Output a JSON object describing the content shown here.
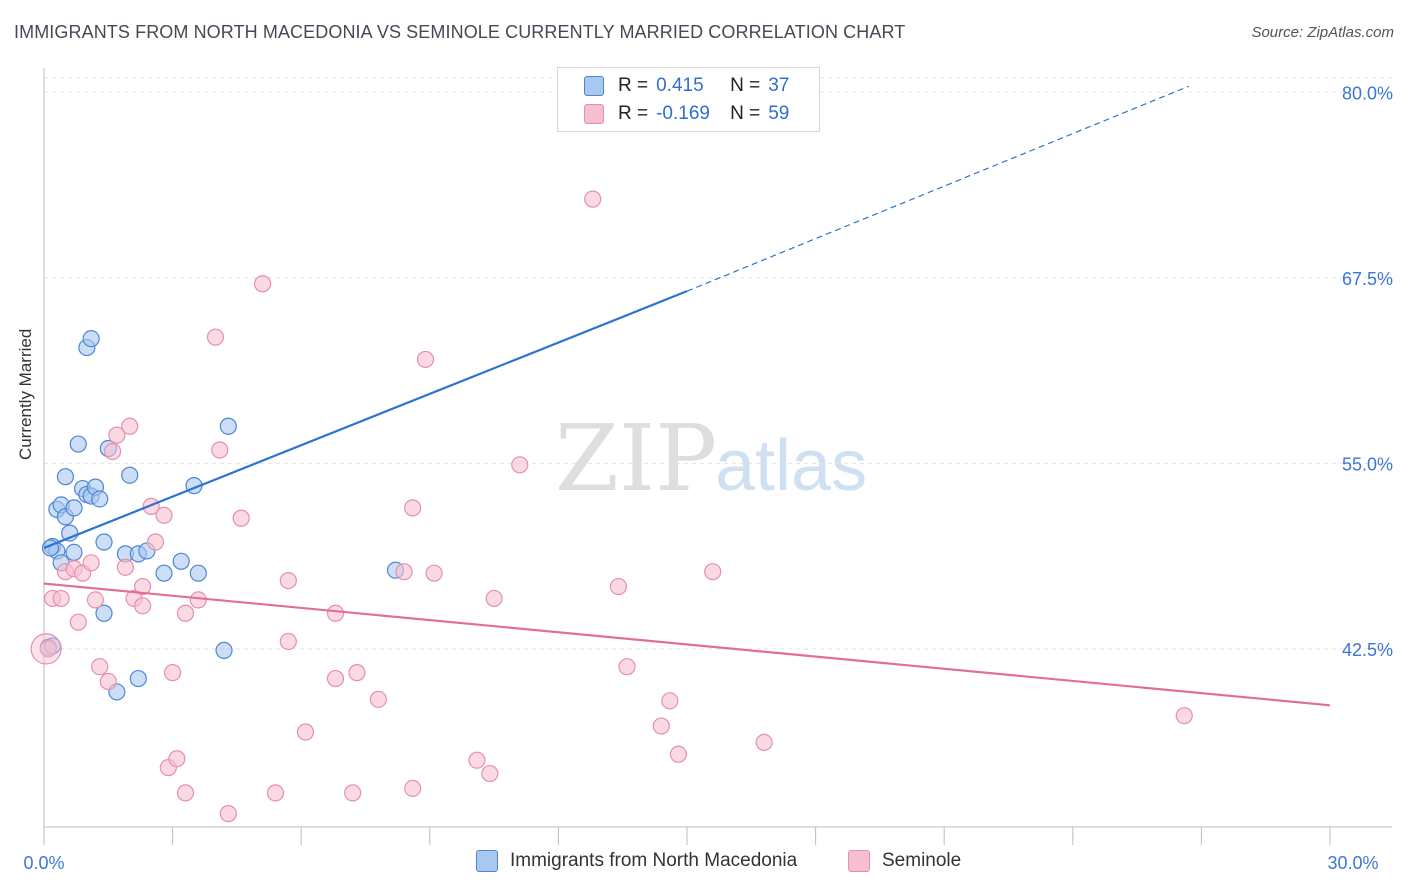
{
  "title": "IMMIGRANTS FROM NORTH MACEDONIA VS SEMINOLE CURRENTLY MARRIED CORRELATION CHART",
  "source": "Source: ZipAtlas.com",
  "watermark": {
    "zip": "ZIP",
    "atlas": "atlas"
  },
  "legend_stats": [
    {
      "r_label": "R =",
      "r_value": "0.415",
      "n_label": "N =",
      "n_value": "37"
    },
    {
      "r_label": "R =",
      "r_value": "-0.169",
      "n_label": "N =",
      "n_value": "59"
    }
  ],
  "legend_bottom": [
    "Immigrants from North Macedonia",
    "Seminole"
  ],
  "colors": {
    "blue_fill": "#a9c8f0",
    "blue_stroke": "#4f86d4",
    "blue_line": "#2b74d0",
    "pink_fill": "#f6bfd0",
    "pink_stroke": "#e58fac",
    "pink_line": "#e06f97",
    "grid": "#e3e3e3",
    "tick_label": "#3b77d4"
  },
  "chart_data": {
    "type": "scatter",
    "title": "IMMIGRANTS FROM NORTH MACEDONIA VS SEMINOLE CURRENTLY MARRIED CORRELATION CHART",
    "xlabel": "",
    "ylabel": "Currently Married",
    "xlim": [
      0,
      30
    ],
    "ylim": [
      30.5,
      81.5
    ],
    "x_tick_labels": [
      "0.0%",
      "30.0%"
    ],
    "y_ticks": [
      42.5,
      55.0,
      67.5,
      80.0
    ],
    "y_tick_labels": [
      "42.5%",
      "55.0%",
      "67.5%",
      "80.0%"
    ],
    "series": [
      {
        "name": "Immigrants from North Macedonia",
        "r": 0.415,
        "n": 37,
        "trend": {
          "x0": 0.0,
          "y0": 49.3,
          "x1": 15.0,
          "y1": 66.6,
          "dash_to_x": 26.7,
          "dash_to_y": 80.4
        },
        "points": [
          [
            0.2,
            49.4
          ],
          [
            0.3,
            49.1
          ],
          [
            0.4,
            48.3
          ],
          [
            0.3,
            51.9
          ],
          [
            0.4,
            52.2
          ],
          [
            0.5,
            51.4
          ],
          [
            0.5,
            54.1
          ],
          [
            0.6,
            50.3
          ],
          [
            0.7,
            52.0
          ],
          [
            0.7,
            49.0
          ],
          [
            0.8,
            56.3
          ],
          [
            0.9,
            53.3
          ],
          [
            1.0,
            62.8
          ],
          [
            1.1,
            63.4
          ],
          [
            1.0,
            52.9
          ],
          [
            1.1,
            52.8
          ],
          [
            1.2,
            53.4
          ],
          [
            1.3,
            52.6
          ],
          [
            1.4,
            49.7
          ],
          [
            1.4,
            44.9
          ],
          [
            1.5,
            56.0
          ],
          [
            1.7,
            39.6
          ],
          [
            1.9,
            48.9
          ],
          [
            2.0,
            54.2
          ],
          [
            2.2,
            40.5
          ],
          [
            2.2,
            48.9
          ],
          [
            2.4,
            49.1
          ],
          [
            2.8,
            47.6
          ],
          [
            3.2,
            48.4
          ],
          [
            3.5,
            53.5
          ],
          [
            3.6,
            47.6
          ],
          [
            4.2,
            42.4
          ],
          [
            4.3,
            57.5
          ],
          [
            8.2,
            47.8
          ],
          [
            0.15,
            49.3
          ],
          [
            0.1,
            42.6
          ],
          [
            0.2,
            42.7
          ]
        ]
      },
      {
        "name": "Seminole",
        "r": -0.169,
        "n": 59,
        "trend": {
          "x0": 0.0,
          "y0": 46.9,
          "x1": 30.0,
          "y1": 38.7
        },
        "points": [
          [
            0.1,
            42.5
          ],
          [
            0.2,
            45.9
          ],
          [
            0.4,
            45.9
          ],
          [
            0.5,
            47.7
          ],
          [
            0.7,
            47.9
          ],
          [
            0.8,
            44.3
          ],
          [
            0.9,
            47.6
          ],
          [
            1.1,
            48.3
          ],
          [
            1.2,
            45.8
          ],
          [
            1.3,
            41.3
          ],
          [
            1.5,
            40.3
          ],
          [
            1.6,
            55.8
          ],
          [
            1.7,
            56.9
          ],
          [
            1.9,
            48.0
          ],
          [
            2.0,
            57.5
          ],
          [
            2.1,
            45.9
          ],
          [
            2.3,
            45.4
          ],
          [
            2.3,
            46.7
          ],
          [
            2.5,
            52.1
          ],
          [
            2.6,
            49.7
          ],
          [
            2.8,
            51.5
          ],
          [
            2.9,
            34.5
          ],
          [
            3.0,
            40.9
          ],
          [
            3.1,
            35.1
          ],
          [
            3.3,
            44.9
          ],
          [
            3.3,
            32.8
          ],
          [
            3.6,
            45.8
          ],
          [
            4.0,
            63.5
          ],
          [
            4.1,
            55.9
          ],
          [
            4.3,
            31.4
          ],
          [
            4.6,
            51.3
          ],
          [
            5.1,
            67.1
          ],
          [
            5.4,
            32.8
          ],
          [
            5.7,
            43.0
          ],
          [
            5.7,
            47.1
          ],
          [
            6.1,
            36.9
          ],
          [
            6.8,
            44.9
          ],
          [
            6.8,
            40.5
          ],
          [
            7.2,
            32.8
          ],
          [
            7.3,
            40.9
          ],
          [
            7.8,
            39.1
          ],
          [
            8.4,
            47.7
          ],
          [
            8.6,
            33.1
          ],
          [
            8.6,
            52.0
          ],
          [
            8.9,
            62.0
          ],
          [
            9.1,
            47.6
          ],
          [
            10.1,
            35.0
          ],
          [
            10.4,
            34.1
          ],
          [
            10.5,
            45.9
          ],
          [
            11.1,
            54.9
          ],
          [
            12.8,
            72.8
          ],
          [
            13.4,
            46.7
          ],
          [
            13.6,
            41.3
          ],
          [
            14.4,
            37.3
          ],
          [
            14.6,
            39.0
          ],
          [
            14.8,
            35.4
          ],
          [
            15.6,
            47.7
          ],
          [
            16.8,
            36.2
          ],
          [
            26.6,
            38.0
          ]
        ]
      }
    ]
  }
}
